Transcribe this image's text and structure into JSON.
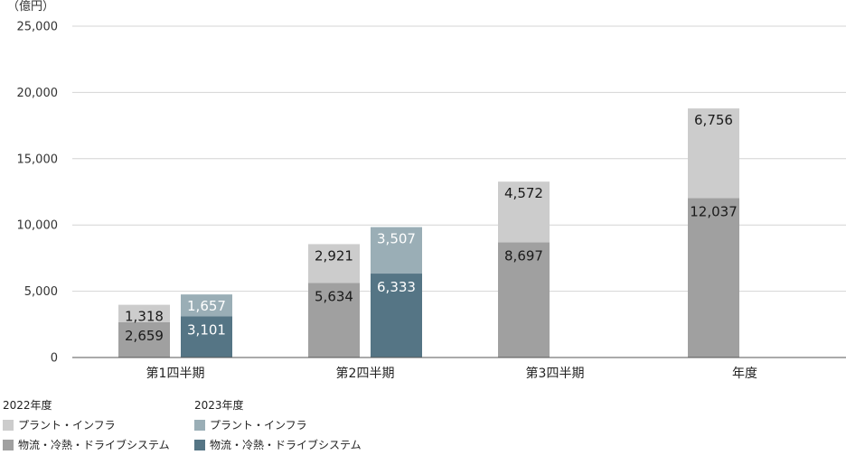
{
  "chart_data": {
    "type": "bar",
    "stacked": true,
    "unit_label": "（億円）",
    "categories": [
      "第1四半期",
      "第2四半期",
      "第3四半期",
      "年度"
    ],
    "highlight_category_color": "#5a7888",
    "ylim": [
      0,
      25000
    ],
    "yticks": [
      0,
      5000,
      10000,
      15000,
      20000,
      25000
    ],
    "ytick_labels": [
      "0",
      "5,000",
      "10,000",
      "15,000",
      "20,000",
      "25,000"
    ],
    "grid": true,
    "groups": [
      {
        "name": "2022年度",
        "series": [
          {
            "name": "物流・冷熱・ドライブシステム",
            "color": "#a0a0a0",
            "values": [
              2659,
              5634,
              8697,
              12037
            ],
            "labels": [
              "2,659",
              "5,634",
              "8,697",
              "12,037"
            ]
          },
          {
            "name": "プラント・インフラ",
            "color": "#cccccc",
            "values": [
              1318,
              2921,
              4572,
              6756
            ],
            "labels": [
              "1,318",
              "2,921",
              "4,572",
              "6,756"
            ]
          }
        ]
      },
      {
        "name": "2023年度",
        "series": [
          {
            "name": "物流・冷熱・ドライブシステム",
            "color": "#557585",
            "values": [
              3101,
              6333,
              null,
              null
            ],
            "labels": [
              "3,101",
              "6,333",
              "",
              ""
            ]
          },
          {
            "name": "プラント・インフラ",
            "color": "#9aaeb6",
            "values": [
              1657,
              3507,
              null,
              null
            ],
            "labels": [
              "1,657",
              "3,507",
              "",
              ""
            ]
          }
        ]
      }
    ],
    "legend_placement": "bottom-left"
  }
}
